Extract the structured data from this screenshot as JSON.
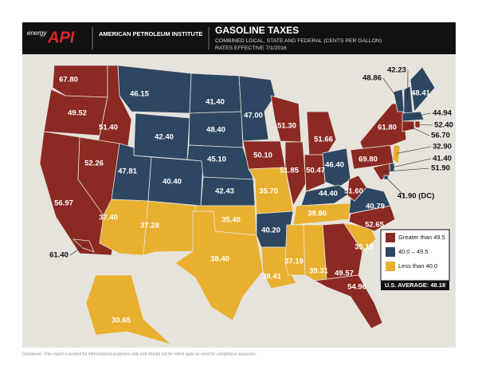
{
  "header": {
    "brand": "energy",
    "logo": "API",
    "organization": "AMERICAN PETROLEUM INSTITUTE",
    "title": "GASOLINE TAXES",
    "subtitle": "COMBINED LOCAL, STATE AND FEDERAL (CENTS PER GALLON)",
    "date": "RATES EFFECTIVE 7/1/2016"
  },
  "map": {
    "values": [
      67.8,
      49.52,
      51.4,
      56.97,
      52.26,
      46.15,
      42.4,
      47.81,
      40.4,
      37.4,
      37.28,
      41.4,
      48.4,
      45.1,
      42.43,
      35.4,
      38.4,
      47.0,
      50.1,
      35.7,
      40.2,
      38.41,
      51.3,
      51.85,
      51.66,
      50.47,
      46.4,
      44.4,
      39.8,
      37.19,
      39.31,
      49.57,
      54.96,
      35.15,
      52.65,
      40.79,
      51.6,
      69.8,
      61.8,
      48.86,
      42.23,
      48.41,
      44.94,
      52.4,
      56.7,
      32.9,
      41.4,
      51.9,
      41.9,
      30.65,
      61.4
    ],
    "value_labels": [
      "67.80",
      "49.52",
      "51.40",
      "56.97",
      "52.26",
      "46.15",
      "42.40",
      "47.81",
      "40.40",
      "37.40",
      "37.28",
      "41.40",
      "48.40",
      "45.10",
      "42.43",
      "35.40",
      "38.40",
      "47.00",
      "50.10",
      "35.70",
      "40.20",
      "38.41",
      "51.30",
      "51.85",
      "51.66",
      "50.47",
      "46.40",
      "44.40",
      "39.80",
      "37.19",
      "39.31",
      "49.57",
      "54.96",
      "35.15",
      "52.65",
      "40.79",
      "51.60",
      "69.80",
      "61.80",
      "48.86",
      "42.23",
      "48.41",
      "44.94",
      "52.40",
      "56.70",
      "32.90",
      "41.40",
      "51.90",
      "41.90 (DC)",
      "30.65",
      "61.40"
    ],
    "colors": [
      "#8b2a22",
      "#8b2a22",
      "#8b2a22",
      "#8b2a22",
      "#8b2a22",
      "#2d4662",
      "#2d4662",
      "#2d4662",
      "#2d4662",
      "#e8b02e",
      "#e8b02e",
      "#2d4662",
      "#2d4662",
      "#2d4662",
      "#2d4662",
      "#e8b02e",
      "#e8b02e",
      "#2d4662",
      "#8b2a22",
      "#e8b02e",
      "#2d4662",
      "#e8b02e",
      "#8b2a22",
      "#8b2a22",
      "#8b2a22",
      "#8b2a22",
      "#2d4662",
      "#2d4662",
      "#e8b02e",
      "#e8b02e",
      "#e8b02e",
      "#8b2a22",
      "#8b2a22",
      "#e8b02e",
      "#8b2a22",
      "#2d4662",
      "#8b2a22",
      "#8b2a22",
      "#8b2a22",
      "#2d4662",
      "#2d4662",
      "#2d4662",
      "#2d4662",
      "#8b2a22",
      "#8b2a22",
      "#e8b02e",
      "#2d4662",
      "#8b2a22",
      "#2d4662",
      "#e8b02e",
      "#8b2a22"
    ]
  },
  "legend": {
    "items": [
      {
        "label": "Greater than 49.5",
        "color": "#8b2a22"
      },
      {
        "label": "40.0 – 49.5",
        "color": "#2d4662"
      },
      {
        "label": "Less than 40.0",
        "color": "#e8b02e"
      }
    ],
    "average": "U.S. AVERAGE: 48.18"
  },
  "disclaimer": "Disclaimer: This report is posted for informational purposes only and should not be relied upon or used for compliance purposes."
}
